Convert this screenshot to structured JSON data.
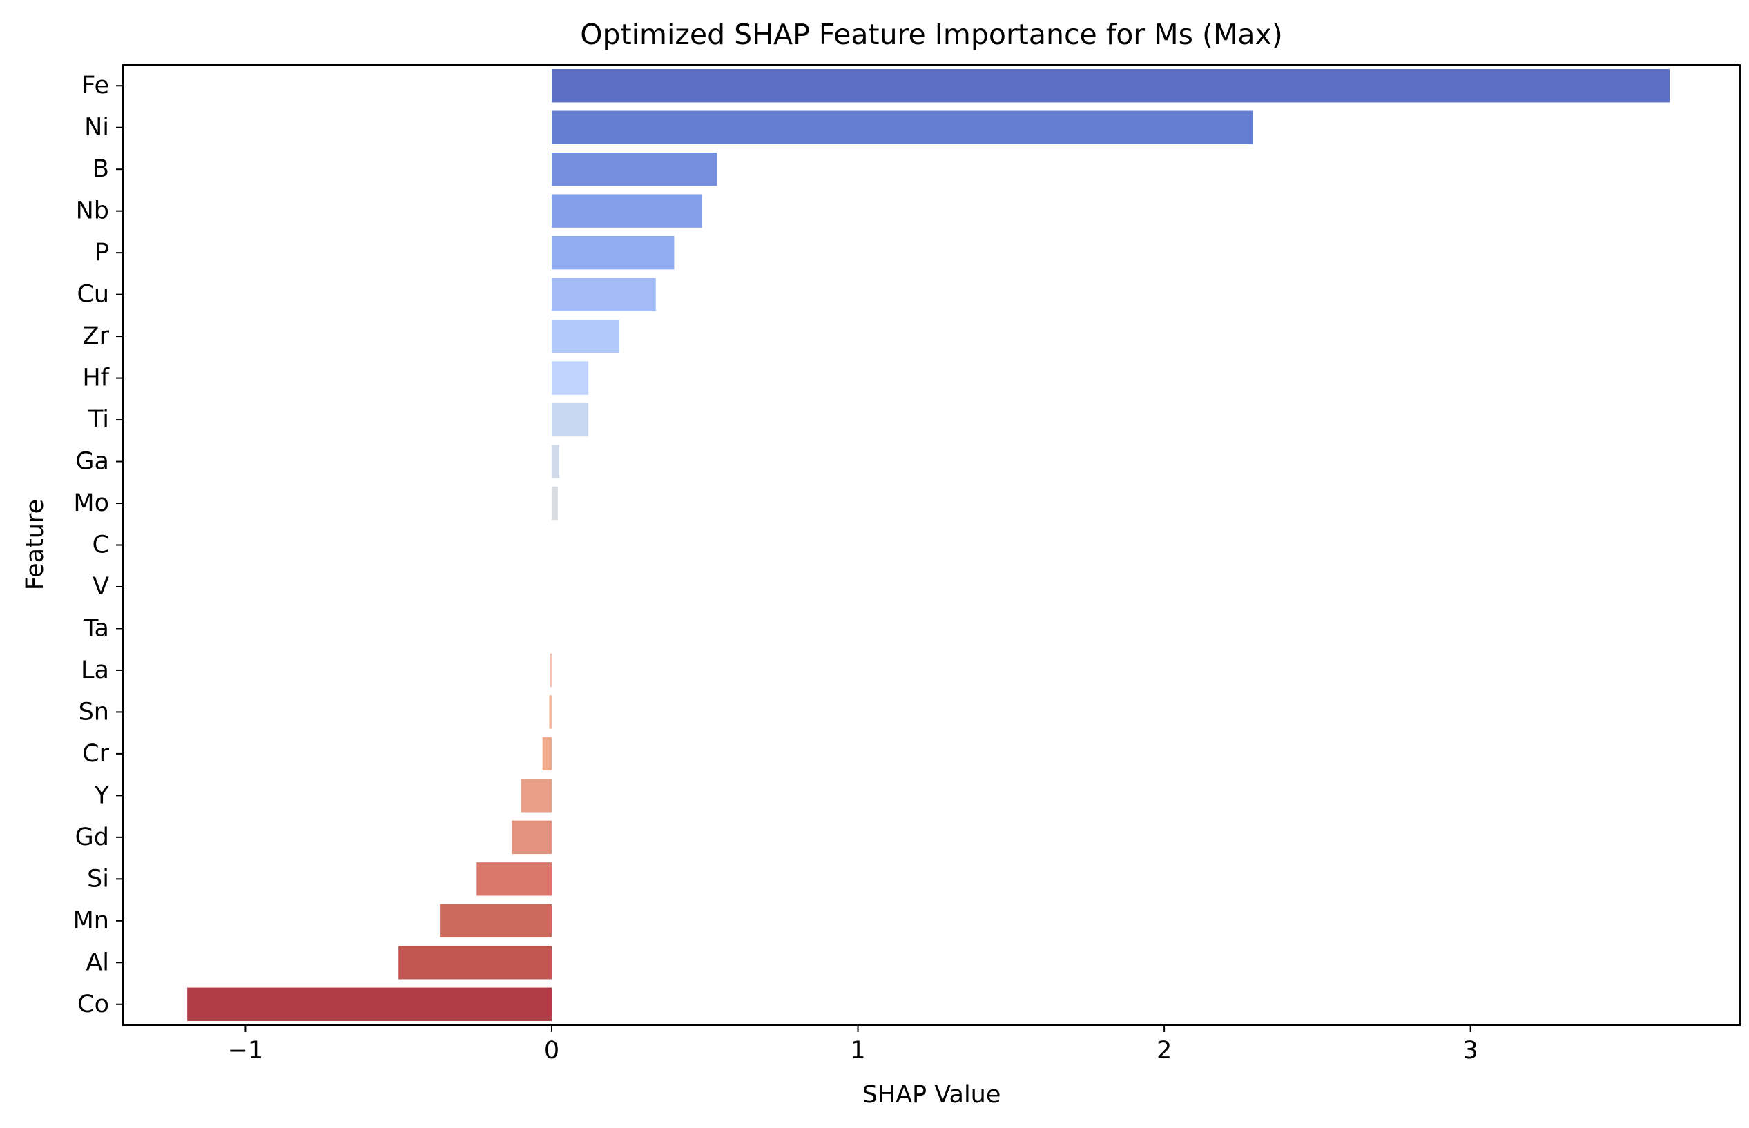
{
  "chart_data": {
    "type": "bar",
    "orientation": "horizontal",
    "title": "Optimized SHAP Feature Importance for Ms (Max)",
    "xlabel": "SHAP Value",
    "ylabel": "Feature",
    "xlim": [
      -1.4,
      3.88
    ],
    "xticks": [
      -1,
      0,
      1,
      2,
      3
    ],
    "xtick_labels": [
      "−1",
      "0",
      "1",
      "2",
      "3"
    ],
    "grid": false,
    "legend": "none",
    "categories": [
      "Fe",
      "Ni",
      "B",
      "Nb",
      "P",
      "Cu",
      "Zr",
      "Hf",
      "Ti",
      "Ga",
      "Mo",
      "C",
      "V",
      "Ta",
      "La",
      "Sn",
      "Cr",
      "Y",
      "Gd",
      "Si",
      "Mn",
      "Al",
      "Co"
    ],
    "values": [
      3.65,
      2.29,
      0.54,
      0.49,
      0.4,
      0.34,
      0.22,
      0.12,
      0.12,
      0.025,
      0.02,
      0.0,
      0.0,
      0.0,
      -0.005,
      -0.008,
      -0.03,
      -0.1,
      -0.13,
      -0.245,
      -0.365,
      -0.5,
      -1.19
    ],
    "colors": [
      "#5a6fc4",
      "#667ed2",
      "#7690df",
      "#849eea",
      "#93adf2",
      "#a3bcf7",
      "#b2c9fb",
      "#c0d3fc",
      "#c7d7f2",
      "#d1dae8",
      "#d9dce1",
      "#e4dcd7",
      "#e9d5cb",
      "#eecbbc",
      "#f5c1a9",
      "#f5b89c",
      "#f0aa8c",
      "#e9a087",
      "#e39280",
      "#d9776a",
      "#cd6a5e",
      "#bf5750",
      "#b03d46"
    ]
  }
}
